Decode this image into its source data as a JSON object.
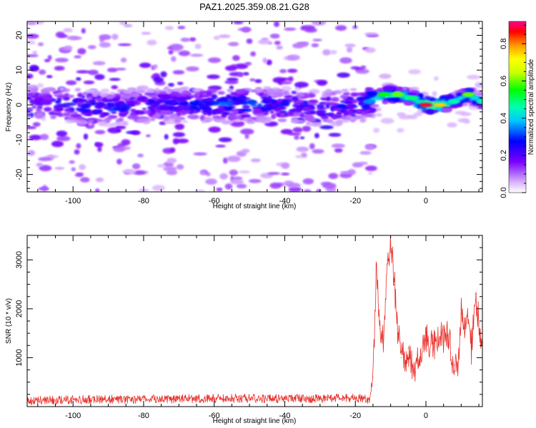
{
  "title": "PAZ1.2025.359.08.21.G28",
  "chart_data": [
    {
      "type": "heatmap",
      "xlabel": "Height of straight line (km)",
      "ylabel": "Frequency (Hz)",
      "xlim": [
        -113,
        16
      ],
      "ylim": [
        -25,
        24
      ],
      "xticks": [
        -100,
        -80,
        -60,
        -40,
        -20,
        0
      ],
      "yticks": [
        -20,
        -10,
        0,
        10,
        20
      ],
      "xtick_labels": [
        "-100",
        "-80",
        "-60",
        "-40",
        "-20",
        "0"
      ],
      "ytick_labels": [
        "-20",
        "-10",
        "0",
        "10",
        "20"
      ],
      "ridge": {
        "x": [
          -113,
          -100,
          -90,
          -80,
          -70,
          -60,
          -50,
          -40,
          -30,
          -20,
          -16,
          -12,
          -8,
          -4,
          0,
          4,
          8,
          12,
          16
        ],
        "frequency": [
          1,
          0,
          -1,
          0,
          0,
          0,
          0,
          0,
          -1,
          0,
          1,
          3,
          3,
          2,
          0,
          0,
          1,
          3,
          1
        ],
        "amplitude": [
          0.25,
          0.3,
          0.3,
          0.3,
          0.3,
          0.35,
          0.35,
          0.3,
          0.3,
          0.3,
          0.35,
          0.55,
          0.6,
          0.5,
          0.88,
          0.75,
          0.45,
          0.6,
          0.45
        ]
      },
      "colorbar": {
        "label": "Normalized spectral amplitude",
        "range": [
          0,
          0.92
        ],
        "ticks": [
          0.0,
          0.2,
          0.4,
          0.6,
          0.8
        ],
        "tick_labels": [
          "0.0",
          "0.2",
          "0.4",
          "0.6",
          "0.8"
        ]
      }
    },
    {
      "type": "line",
      "xlabel": "Height of straight line (km)",
      "ylabel": "SNR (10 * v/v)",
      "xlim": [
        -113,
        16
      ],
      "ylim": [
        0,
        3500
      ],
      "xticks": [
        -100,
        -80,
        -60,
        -40,
        -20,
        0
      ],
      "yticks": [
        1000,
        2000,
        3000
      ],
      "xtick_labels": [
        "-100",
        "-80",
        "-60",
        "-40",
        "-20",
        "0"
      ],
      "ytick_labels": [
        "1000",
        "2000",
        "3000"
      ],
      "series": [
        {
          "name": "SNR",
          "color": "#e8302a",
          "x": [
            -113,
            -100,
            -90,
            -80,
            -70,
            -60,
            -50,
            -40,
            -30,
            -20,
            -16,
            -15,
            -14,
            -13,
            -12,
            -11,
            -10,
            -9,
            -8,
            -7,
            -6,
            -5,
            -4,
            -3,
            -2,
            0,
            2,
            4,
            6,
            7,
            8,
            9,
            10,
            11,
            12,
            13,
            14,
            15,
            16
          ],
          "values": [
            120,
            140,
            150,
            150,
            160,
            170,
            170,
            160,
            170,
            180,
            150,
            600,
            2900,
            1600,
            1200,
            3000,
            3400,
            2500,
            1500,
            1000,
            900,
            1200,
            850,
            700,
            950,
            1350,
            1300,
            1400,
            1450,
            1100,
            850,
            700,
            1900,
            1600,
            1700,
            1200,
            2300,
            1700,
            950
          ]
        }
      ]
    }
  ]
}
